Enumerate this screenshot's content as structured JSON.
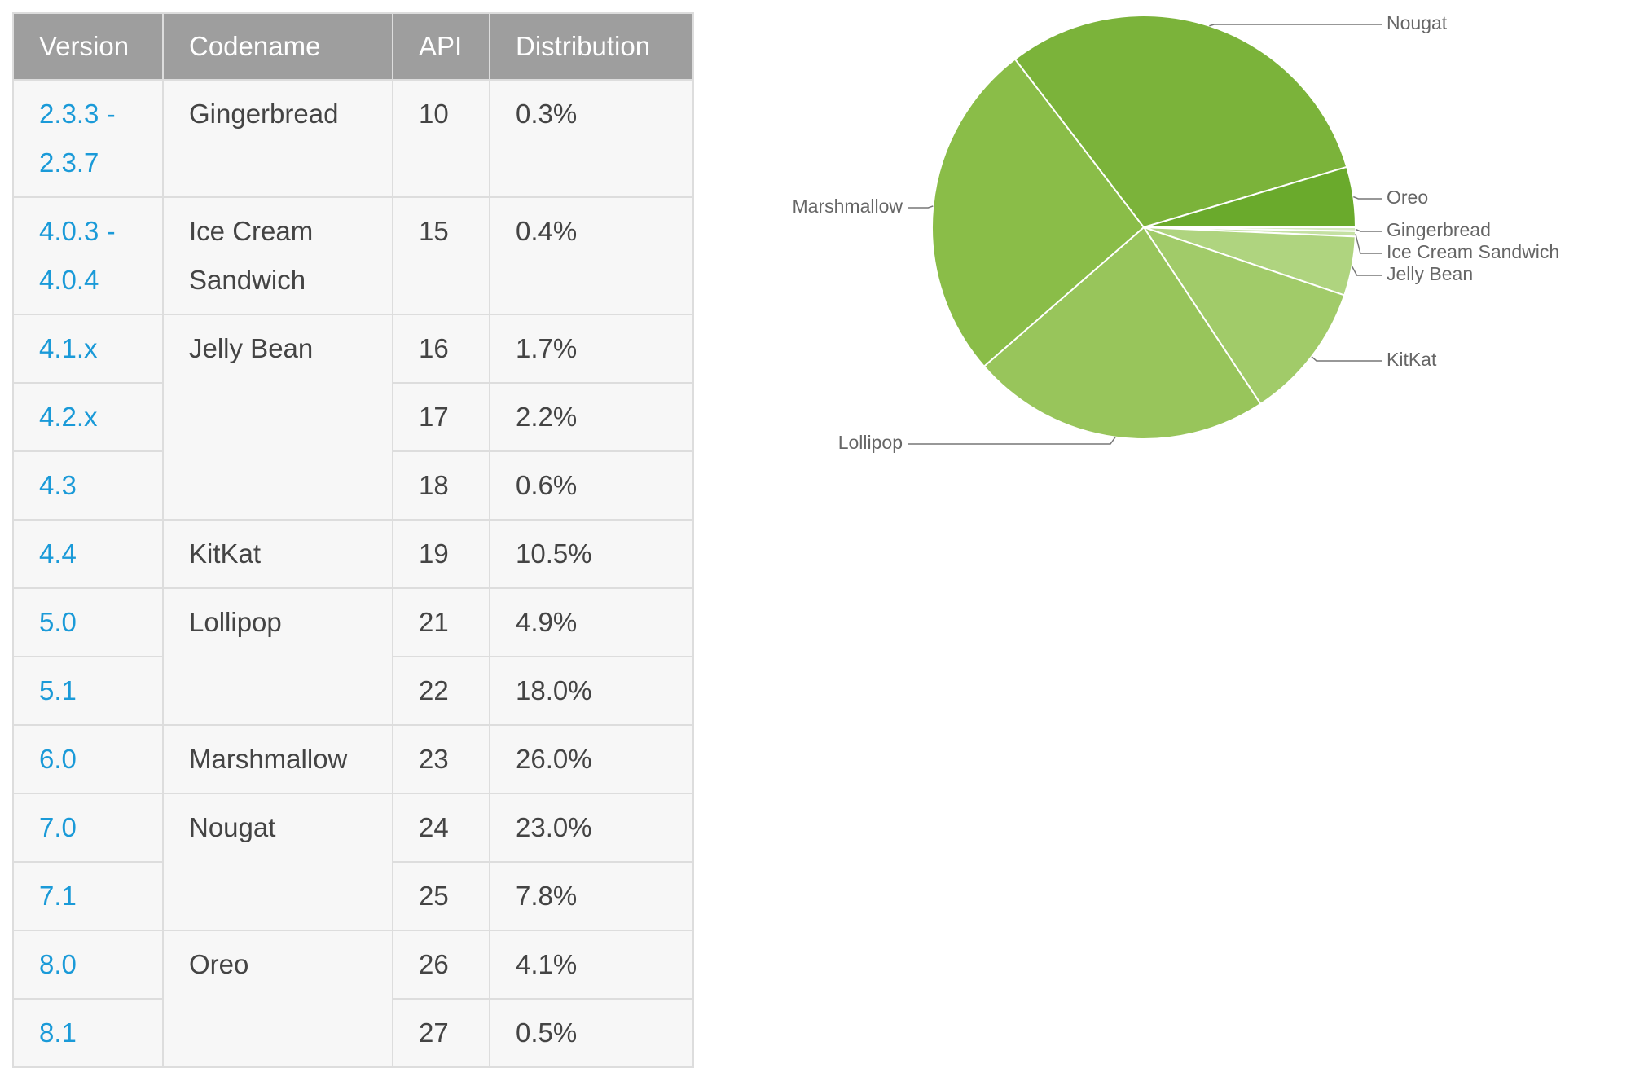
{
  "table": {
    "header": [
      "Version",
      "Codename",
      "API",
      "Distribution"
    ],
    "groups": [
      {
        "codename": "Gingerbread",
        "rows": [
          [
            "2.3.3 - 2.3.7",
            "10",
            "0.3%"
          ]
        ]
      },
      {
        "codename": "Ice Cream Sandwich",
        "rows": [
          [
            "4.0.3 - 4.0.4",
            "15",
            "0.4%"
          ]
        ]
      },
      {
        "codename": "Jelly Bean",
        "rows": [
          [
            "4.1.x",
            "16",
            "1.7%"
          ],
          [
            "4.2.x",
            "17",
            "2.2%"
          ],
          [
            "4.3",
            "18",
            "0.6%"
          ]
        ]
      },
      {
        "codename": "KitKat",
        "rows": [
          [
            "4.4",
            "19",
            "10.5%"
          ]
        ]
      },
      {
        "codename": "Lollipop",
        "rows": [
          [
            "5.0",
            "21",
            "4.9%"
          ],
          [
            "5.1",
            "22",
            "18.0%"
          ]
        ]
      },
      {
        "codename": "Marshmallow",
        "rows": [
          [
            "6.0",
            "23",
            "26.0%"
          ]
        ]
      },
      {
        "codename": "Nougat",
        "rows": [
          [
            "7.0",
            "24",
            "23.0%"
          ],
          [
            "7.1",
            "25",
            "7.8%"
          ]
        ]
      },
      {
        "codename": "Oreo",
        "rows": [
          [
            "8.0",
            "26",
            "4.1%"
          ],
          [
            "8.1",
            "27",
            "0.5%"
          ]
        ]
      }
    ]
  },
  "chart_data": {
    "type": "pie",
    "categories": [
      "Gingerbread",
      "Ice Cream Sandwich",
      "Jelly Bean",
      "KitKat",
      "Lollipop",
      "Marshmallow",
      "Nougat",
      "Oreo"
    ],
    "values": [
      0.3,
      0.4,
      4.5,
      10.5,
      22.9,
      26.0,
      30.8,
      4.6
    ],
    "colors": [
      "#d6eac0",
      "#c4e0a2",
      "#afd47f",
      "#a1cb69",
      "#98c55b",
      "#8abd48",
      "#7bb33a",
      "#6aaa2c"
    ]
  }
}
